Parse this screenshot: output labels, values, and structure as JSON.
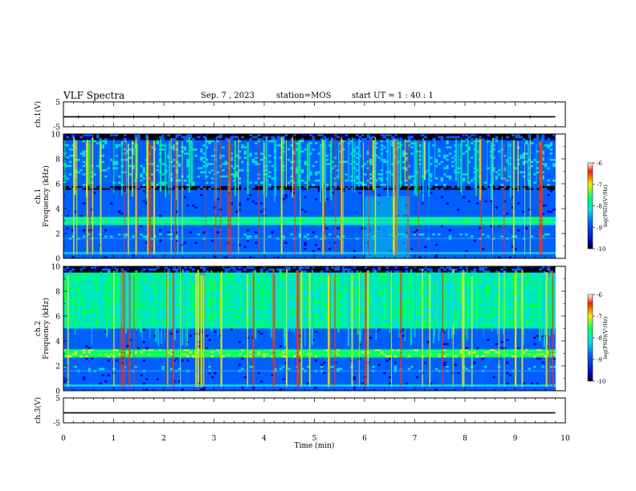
{
  "header": {
    "title": "VLF Spectra",
    "date": "Sep. 7 , 2023",
    "station": "station=MOS",
    "start": "start UT =  1 : 40 : 1"
  },
  "chart_data": [
    {
      "id": "ch1-voltage",
      "type": "line",
      "ylabel": "ch.1(V)",
      "ylim": [
        -5,
        5
      ],
      "yticks": [
        "5",
        "-5"
      ],
      "xlim": [
        0,
        10
      ],
      "series": [
        {
          "x": [
            0,
            9.8
          ],
          "values": [
            -1,
            -1
          ]
        }
      ]
    },
    {
      "id": "ch1-spectrogram",
      "type": "heatmap",
      "ylabel": "ch.1\nFrequency (kHz)",
      "ylim": [
        0,
        10
      ],
      "yticks": [
        "0",
        "2",
        "4",
        "6",
        "8",
        "10"
      ],
      "xlim": [
        0,
        10
      ],
      "data_end_min": 9.8,
      "colorbar": {
        "label": "log(PSD)(V²/Hz)",
        "range": [
          -10,
          -6
        ],
        "ticks": [
          "-6",
          "-7",
          "-8",
          "-9",
          "-10"
        ]
      },
      "bands_khz": [
        {
          "from": 0.3,
          "to": 0.5,
          "level": -8.5
        },
        {
          "from": 1.5,
          "to": 2.0,
          "level": -9.0
        },
        {
          "from": 2.6,
          "to": 3.4,
          "level": -8.2
        },
        {
          "from": 5.8,
          "to": 9.5,
          "level": -9.0
        }
      ],
      "disturbance_min": [
        6.0,
        6.9
      ]
    },
    {
      "id": "ch2-spectrogram",
      "type": "heatmap",
      "ylabel": "ch.2\nFrequency (kHz)",
      "ylim": [
        0,
        10
      ],
      "yticks": [
        "0",
        "2",
        "4",
        "6",
        "8",
        "10"
      ],
      "xlim": [
        0,
        10
      ],
      "data_end_min": 9.8,
      "colorbar": {
        "label": "log(PSD)(V²/Hz)",
        "range": [
          -10,
          -6
        ],
        "ticks": [
          "-6",
          "-7",
          "-8",
          "-9",
          "-10"
        ]
      },
      "bands_khz": [
        {
          "from": 0.3,
          "to": 0.5,
          "level": -8.5
        },
        {
          "from": 1.5,
          "to": 2.0,
          "level": -9.0
        },
        {
          "from": 2.6,
          "to": 3.4,
          "level": -7.8
        },
        {
          "from": 5.0,
          "to": 9.5,
          "level": -8.2
        }
      ]
    },
    {
      "id": "ch3-voltage",
      "type": "line",
      "ylabel": "ch.3(V)",
      "ylim": [
        -5,
        5
      ],
      "yticks": [
        "5",
        "-5"
      ],
      "xlim": [
        0,
        10
      ],
      "xlabel": "Time (min)",
      "xticks": [
        "0",
        "1",
        "2",
        "3",
        "4",
        "5",
        "6",
        "7",
        "8",
        "9",
        "10"
      ],
      "series": [
        {
          "x": [
            0,
            9.8
          ],
          "values": [
            -1,
            -1
          ]
        }
      ]
    }
  ]
}
